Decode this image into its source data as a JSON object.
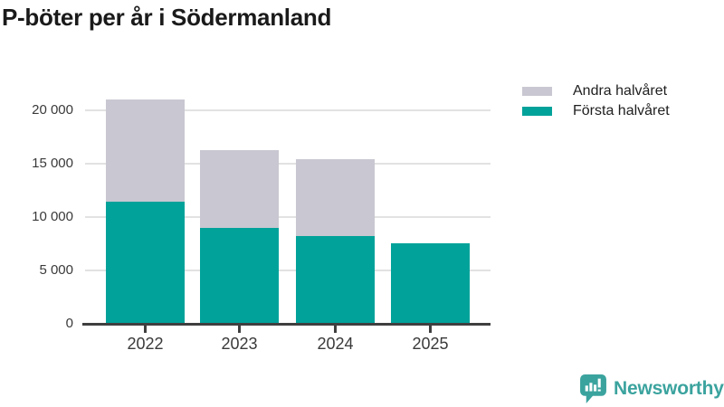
{
  "title": "P-böter per år i Södermanland",
  "legend": [
    {
      "label": "Andra halvåret",
      "color": "#c9c7d1"
    },
    {
      "label": "Första halvåret",
      "color": "#00a29a"
    }
  ],
  "chart_data": {
    "type": "bar",
    "stacked": true,
    "title": "P-böter per år i Södermanland",
    "categories": [
      "2022",
      "2023",
      "2024",
      "2025"
    ],
    "series": [
      {
        "name": "Första halvåret",
        "color": "#00a29a",
        "values": [
          11400,
          9000,
          8200,
          7550
        ]
      },
      {
        "name": "Andra halvåret",
        "color": "#c9c7d1",
        "values": [
          9600,
          7200,
          7200,
          0
        ]
      }
    ],
    "stacked_totals": [
      21000,
      16200,
      15400,
      7550
    ],
    "ylim": [
      0,
      21000
    ],
    "yticks": [
      0,
      5000,
      10000,
      15000,
      20000
    ],
    "ytick_labels": [
      "0",
      "5 000",
      "10 000",
      "15 000",
      "20 000"
    ],
    "xlabel": "",
    "ylabel": "",
    "grid": true,
    "legend_position": "top-right"
  },
  "footer": {
    "brand": "Newsworthy",
    "brand_color": "#3ba39e",
    "logo_icon": "bar-chart-speech-bubble"
  },
  "colors": {
    "first_half": "#00a29a",
    "second_half": "#c9c7d1",
    "gridline": "#e2e2e2",
    "axis": "#3f3f3f",
    "title_text": "#1a1a1a",
    "tick_text": "#3a3a3a",
    "background": "#ffffff"
  }
}
